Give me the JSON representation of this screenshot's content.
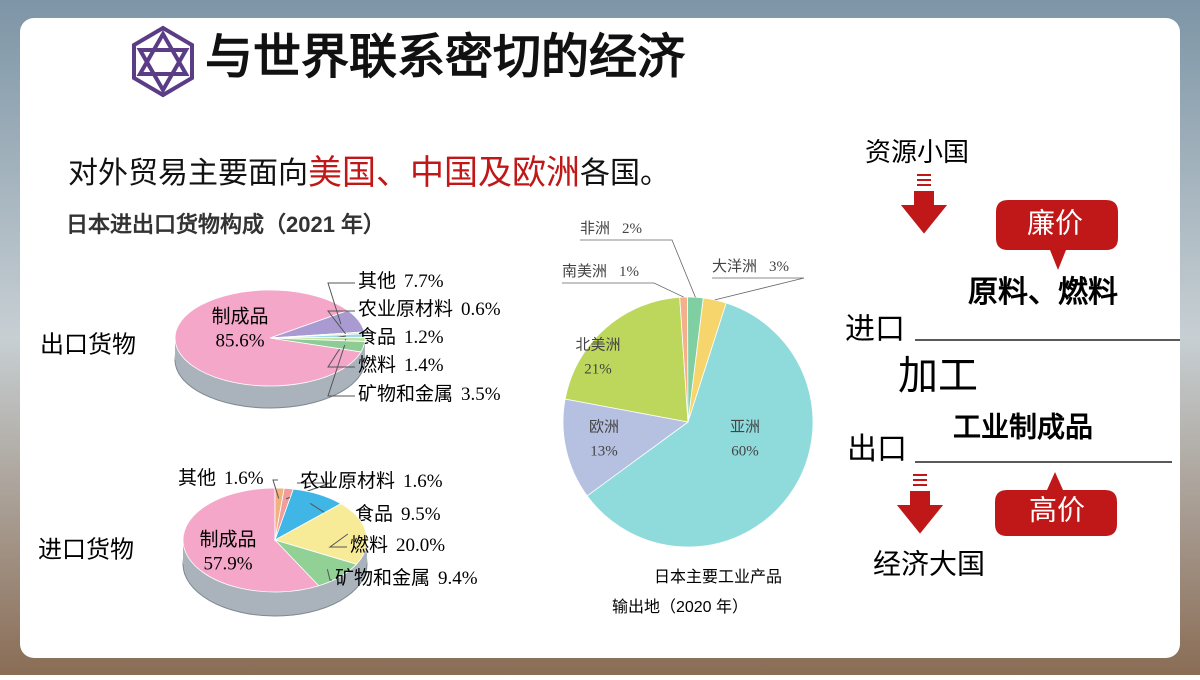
{
  "slide": {
    "title": "与世界联系密切的经济",
    "sentence": [
      "对外贸易主要面向",
      "美国、中国及欧洲",
      "各国。"
    ],
    "chart_caption": "日本进出口货物构成（2021 年）",
    "flow": {
      "top": "资源小国",
      "cheap": "廉价",
      "import_goods": "原料、燃料",
      "import_label": "进口",
      "process": "加工",
      "export_goods": "工业制成品",
      "export_label": "出口",
      "expensive": "高价",
      "bottom": "经济大国"
    }
  },
  "chart_data": [
    {
      "type": "pie",
      "title": "出口货物",
      "categories": [
        "制成品",
        "其他",
        "农业原材料",
        "食品",
        "燃料",
        "矿物和金属"
      ],
      "values": [
        85.6,
        7.7,
        0.6,
        1.2,
        1.4,
        3.5
      ],
      "value_labels": [
        "85.6%",
        "7.7%",
        "0.6%",
        "1.2%",
        "1.4%",
        "3.5%"
      ],
      "colors": [
        "#f4a7c9",
        "#a99bd2",
        "#dfe9b4",
        "#9fd7e6",
        "#bfe3a5",
        "#8fcb95"
      ]
    },
    {
      "type": "pie",
      "title": "进口货物",
      "categories": [
        "制成品",
        "其他",
        "农业原材料",
        "食品",
        "燃料",
        "矿物和金属"
      ],
      "values": [
        57.9,
        1.6,
        1.6,
        9.5,
        20.0,
        9.4
      ],
      "value_labels": [
        "57.9%",
        "1.6%",
        "1.6%",
        "9.5%",
        "20.0%",
        "9.4%"
      ],
      "colors": [
        "#f4a7c9",
        "#f0b27e",
        "#f29c9c",
        "#3fb6e6",
        "#f8eb98",
        "#92d196"
      ]
    },
    {
      "type": "pie",
      "title": [
        "日本主要工业产品",
        "输出地（2020 年）"
      ],
      "categories": [
        "大洋洲",
        "亚洲",
        "欧洲",
        "北美洲",
        "南美洲",
        "非洲"
      ],
      "values": [
        3,
        60,
        13,
        21,
        1,
        2
      ],
      "value_labels": [
        "3%",
        "60%",
        "13%",
        "21%",
        "1%",
        "2%"
      ],
      "colors": [
        "#f6d66c",
        "#8fdbdc",
        "#b6c1e2",
        "#bcd75c",
        "#f4b08b",
        "#7fcfa2"
      ]
    }
  ]
}
